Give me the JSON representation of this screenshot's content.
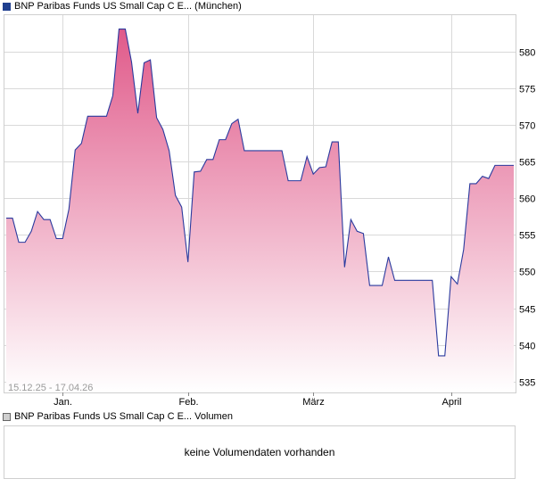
{
  "legend": {
    "price": "BNP Paribas Funds US Small Cap C E... (München)",
    "volume": "BNP Paribas Funds US Small Cap C E... Volumen"
  },
  "volume_panel": {
    "message": "keine Volumendaten vorhanden"
  },
  "date_range": "15.12.25 - 17.04.26",
  "colors": {
    "line": "#2a3a9e",
    "fill_top": "#e05a8a",
    "fill_bottom": "#ffffff",
    "grid": "#d9d9d9"
  },
  "chart_data": {
    "type": "area",
    "ylim": [
      533.5,
      585
    ],
    "yticks": [
      535,
      540,
      545,
      550,
      555,
      560,
      565,
      570,
      575,
      580
    ],
    "xlim": [
      0,
      81
    ],
    "xticks": [
      {
        "label": "Jan.",
        "x": 9
      },
      {
        "label": "Feb.",
        "x": 29
      },
      {
        "label": "März",
        "x": 49
      },
      {
        "label": "April",
        "x": 71
      }
    ],
    "grid": true,
    "x": [
      0,
      1,
      2,
      3,
      4,
      5,
      6,
      7,
      8,
      9,
      10,
      11,
      12,
      13,
      14,
      15,
      16,
      17,
      18,
      19,
      20,
      21,
      22,
      23,
      24,
      25,
      26,
      27,
      28,
      29,
      30,
      31,
      32,
      33,
      34,
      35,
      36,
      37,
      38,
      39,
      40,
      41,
      42,
      43,
      44,
      45,
      46,
      47,
      48,
      49,
      50,
      51,
      52,
      53,
      54,
      55,
      56,
      57,
      58,
      59,
      60,
      61,
      62,
      63,
      64,
      65,
      66,
      67,
      68,
      69,
      70,
      71,
      72,
      73,
      74,
      75,
      76,
      77,
      78,
      79,
      80,
      81
    ],
    "values": [
      557.3,
      557.3,
      554.0,
      554.0,
      555.5,
      558.2,
      557.1,
      557.1,
      554.5,
      554.5,
      558.5,
      566.6,
      567.5,
      571.2,
      571.2,
      571.2,
      571.2,
      574.0,
      583.1,
      583.1,
      578.6,
      571.6,
      578.5,
      578.9,
      571.0,
      569.4,
      566.5,
      560.4,
      558.8,
      551.3,
      563.6,
      563.7,
      565.3,
      565.3,
      568.0,
      568.0,
      570.2,
      570.8,
      566.5,
      566.5,
      566.5,
      566.5,
      566.5,
      566.5,
      566.5,
      562.4,
      562.4,
      562.4,
      565.7,
      563.3,
      564.2,
      564.3,
      567.7,
      567.7,
      550.6,
      557.1,
      555.5,
      555.2,
      548.1,
      548.1,
      548.1,
      552.0,
      548.8,
      548.8,
      548.8,
      548.8,
      548.8,
      548.8,
      548.8,
      538.5,
      538.5,
      549.3,
      548.3,
      553.0,
      562.0,
      562.0,
      563.0,
      562.7,
      564.5,
      564.5,
      564.5,
      564.5
    ]
  }
}
